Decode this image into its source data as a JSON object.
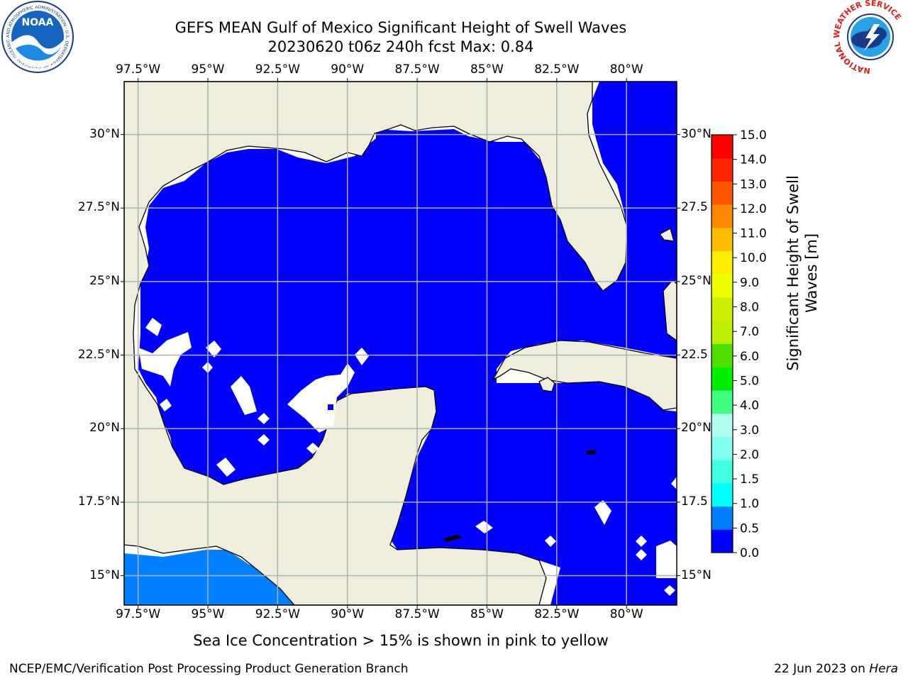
{
  "title": {
    "line1": "GEFS MEAN Gulf of Mexico Significant Height of Swell Waves",
    "line2": "20230620 t06z 240h fcst   Max: 0.84"
  },
  "map": {
    "lon_range": [
      -98.0,
      -78.2
    ],
    "lat_range": [
      14.0,
      31.8
    ],
    "lon_ticks": [
      -97.5,
      -95,
      -92.5,
      -90,
      -87.5,
      -85,
      -82.5,
      -80
    ],
    "lat_ticks": [
      30,
      27.5,
      25,
      22.5,
      20,
      17.5,
      15
    ],
    "lon_labels": [
      "97.5°W",
      "95°W",
      "92.5°W",
      "90°W",
      "87.5°W",
      "85°W",
      "82.5°W",
      "80°W"
    ],
    "lat_labels": [
      "30°N",
      "27.5°N",
      "25°N",
      "22.5°N",
      "20°N",
      "17.5°N",
      "15°N"
    ],
    "right_lat_labels": [
      "30°N",
      "27.5",
      "25°N",
      "22.5",
      "20°N",
      "17.5",
      "15°N"
    ],
    "grid": true,
    "land_color": "#efeedd",
    "ocean_fill_color": "#0000ff",
    "pacific_fill_color": "#0080ff",
    "coastline_color": "#000000"
  },
  "colorbar": {
    "label": "Significant Height of Swell Waves [m]",
    "label_lines": [
      "Significant Height of Swell",
      "Waves [m]"
    ],
    "tick_labels": [
      "0.0",
      "0.5",
      "1.0",
      "1.5",
      "2.0",
      "3.0",
      "4.0",
      "5.0",
      "6.0",
      "7.0",
      "8.0",
      "9.0",
      "10.0",
      "11.0",
      "12.0",
      "13.0",
      "14.0",
      "15.0"
    ],
    "colors": [
      "#0000ff",
      "#0080ff",
      "#00ffff",
      "#40ffe0",
      "#80fff0",
      "#b0fff0",
      "#40ff80",
      "#00ee00",
      "#50dd00",
      "#bbee00",
      "#ccee00",
      "#eeff00",
      "#ffee00",
      "#ffbb00",
      "#ff8800",
      "#ff5500",
      "#ff2200",
      "#ff0000"
    ]
  },
  "logos": {
    "left": {
      "text": "NOAA",
      "ring_text": "NATIONAL OCEANIC AND ATMOSPHERIC ADMINISTRATION · U.S. DEPARTMENT OF COMMERCE"
    },
    "right": {
      "ring_text": "NATIONAL WEATHER SERVICE"
    }
  },
  "footer": {
    "note": "Sea Ice Concentration > 15% is shown in pink to yellow",
    "left": "NCEP/EMC/Verification Post Processing Product Generation Branch",
    "right_date": "22 Jun 2023 on ",
    "right_machine": "Hera"
  }
}
